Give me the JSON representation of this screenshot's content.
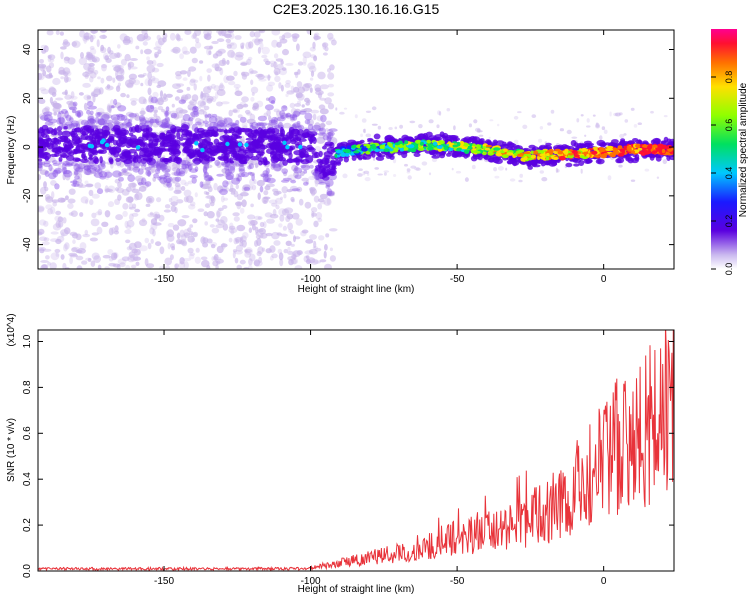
{
  "title": "C2E3.2025.130.16.16.G15",
  "chart_data": [
    {
      "type": "heatmap",
      "xlabel": "Height of straight line (km)",
      "ylabel": "Frequency (Hz)",
      "xlim": [
        -193,
        24
      ],
      "ylim": [
        -50,
        48
      ],
      "xticks": [
        -150,
        -100,
        -50,
        0
      ],
      "yticks": [
        -40,
        -20,
        0,
        20,
        40
      ],
      "ridge": {
        "x": [
          -193,
          -150,
          -100,
          -95,
          -92,
          -85,
          -70,
          -60,
          -50,
          -40,
          -30,
          -25,
          -20,
          -10,
          0,
          10,
          24
        ],
        "y": [
          1,
          1,
          0,
          -7,
          -3,
          -1,
          0,
          1,
          0,
          -1,
          -3,
          -4,
          -3,
          -3,
          -2,
          -1,
          -1
        ]
      },
      "noise_region_end": -92
    },
    {
      "type": "line",
      "xlabel": "Height of straight line (km)",
      "ylabel": "SNR (10 * v/v)",
      "multiplier": "(x10^4)",
      "xlim": [
        -193,
        24
      ],
      "ylim": [
        0,
        1.05
      ],
      "xticks": [
        -150,
        -100,
        -50,
        0
      ],
      "yticks": [
        0.0,
        0.2,
        0.4,
        0.6,
        0.8,
        1.0
      ],
      "envelope": {
        "x": [
          -193,
          -110,
          -100,
          -95,
          -80,
          -70,
          -60,
          -50,
          -40,
          -30,
          -20,
          -15,
          -10,
          0,
          5,
          10,
          15,
          20,
          24
        ],
        "y": [
          0.01,
          0.01,
          0.015,
          0.03,
          0.07,
          0.1,
          0.14,
          0.18,
          0.22,
          0.27,
          0.33,
          0.38,
          0.45,
          0.6,
          0.68,
          0.74,
          0.79,
          0.86,
          0.9
        ]
      },
      "color": "#e8333a"
    }
  ],
  "colorbar": {
    "label": "Normalized spectral amplitude",
    "ticks": [
      "0.0",
      "0.2",
      "0.4",
      "0.6",
      "0.8"
    ]
  },
  "colors": {
    "noise": "#c8b3ea",
    "core": "#5a00e0",
    "snr_line": "#e8333a"
  }
}
